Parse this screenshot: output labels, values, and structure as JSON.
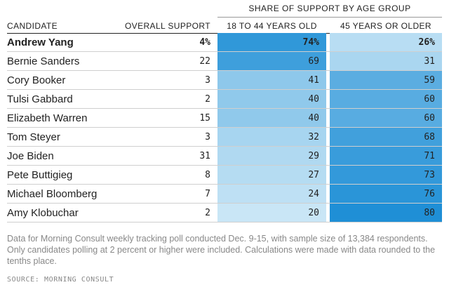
{
  "table": {
    "group_header": "SHARE OF SUPPORT BY AGE GROUP",
    "columns": [
      "CANDIDATE",
      "OVERALL SUPPORT",
      "18 TO 44 YEARS OLD",
      "45 YEARS OR OLDER"
    ],
    "rows": [
      {
        "candidate": "Andrew Yang",
        "overall": "4%",
        "young": "74%",
        "old": "26%",
        "young_value": 74,
        "old_value": 26,
        "bold": true
      },
      {
        "candidate": "Bernie Sanders",
        "overall": "22",
        "young": "69",
        "old": "31",
        "young_value": 69,
        "old_value": 31
      },
      {
        "candidate": "Cory Booker",
        "overall": "3",
        "young": "41",
        "old": "59",
        "young_value": 41,
        "old_value": 59
      },
      {
        "candidate": "Tulsi Gabbard",
        "overall": "2",
        "young": "40",
        "old": "60",
        "young_value": 40,
        "old_value": 60
      },
      {
        "candidate": "Elizabeth Warren",
        "overall": "15",
        "young": "40",
        "old": "60",
        "young_value": 40,
        "old_value": 60
      },
      {
        "candidate": "Tom Steyer",
        "overall": "3",
        "young": "32",
        "old": "68",
        "young_value": 32,
        "old_value": 68
      },
      {
        "candidate": "Joe Biden",
        "overall": "31",
        "young": "29",
        "old": "71",
        "young_value": 29,
        "old_value": 71
      },
      {
        "candidate": "Pete Buttigieg",
        "overall": "8",
        "young": "27",
        "old": "73",
        "young_value": 27,
        "old_value": 73
      },
      {
        "candidate": "Michael Bloomberg",
        "overall": "7",
        "young": "24",
        "old": "76",
        "young_value": 24,
        "old_value": 76
      },
      {
        "candidate": "Amy Klobuchar",
        "overall": "2",
        "young": "20",
        "old": "80",
        "young_value": 20,
        "old_value": 80
      }
    ],
    "heat_colors": {
      "low": "#c9e6f6",
      "high": "#1f8fd6"
    }
  },
  "footnote": "Data for Morning Consult weekly tracking poll conducted Dec. 9-15, with sample size of 13,384 respondents. Only candidates polling at 2 percent or higher were included. Calculations were made with data rounded to the tenths place.",
  "source": "SOURCE: MORNING CONSULT"
}
